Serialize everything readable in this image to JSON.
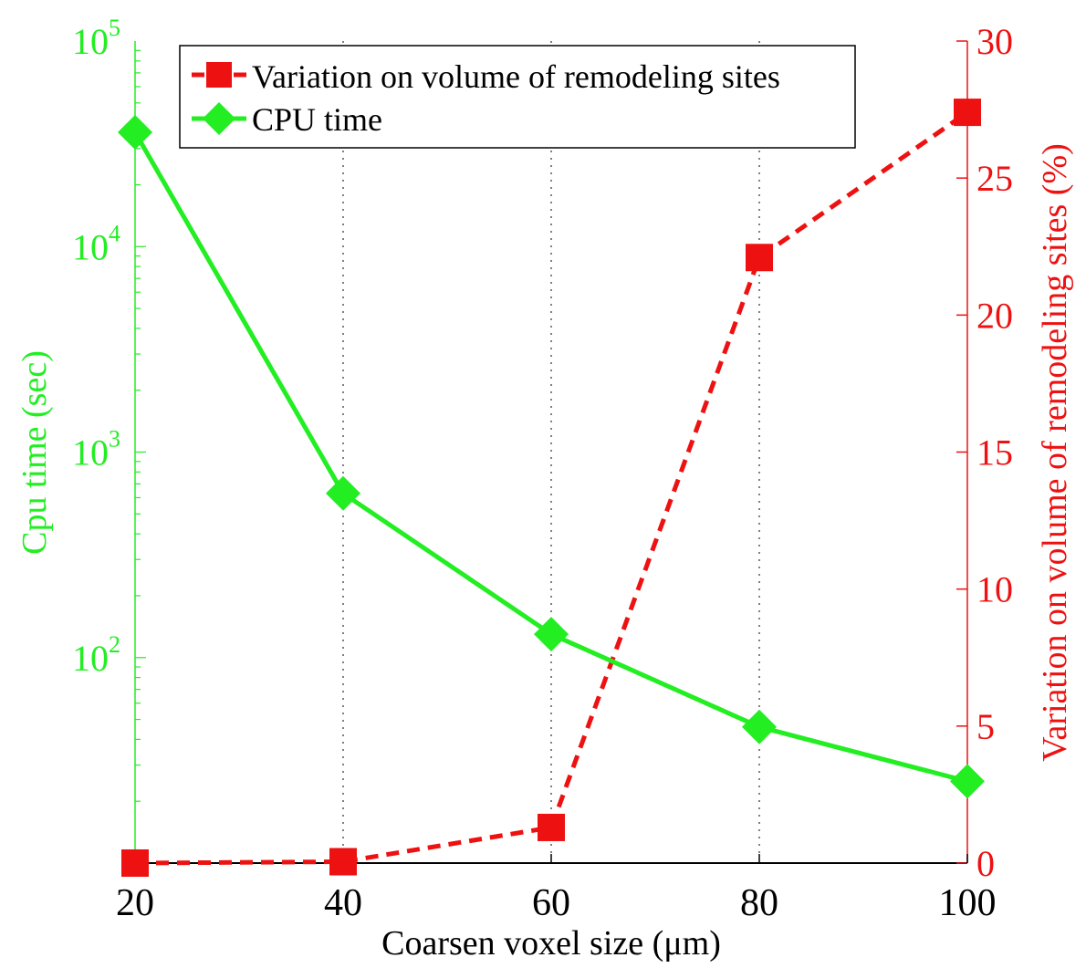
{
  "chart_data": {
    "type": "line",
    "x": [
      20,
      40,
      60,
      80,
      100
    ],
    "xlabel": "Coarsen voxel size (μm)",
    "xlim": [
      20,
      100
    ],
    "x_ticks": [
      "20",
      "40",
      "60",
      "80",
      "100"
    ],
    "grid": "vertical dotted",
    "legend_position": "top-left",
    "left_axis": {
      "label": "Cpu time (sec)",
      "scale": "log",
      "ylim": [
        10,
        100000
      ],
      "ticks": [
        {
          "value": 100,
          "base": "10",
          "exp": "2"
        },
        {
          "value": 1000,
          "base": "10",
          "exp": "3"
        },
        {
          "value": 10000,
          "base": "10",
          "exp": "4"
        },
        {
          "value": 100000,
          "base": "10",
          "exp": "5"
        }
      ],
      "color": "#22ee22"
    },
    "right_axis": {
      "label": "Variation on volume of remodeling sites (%)",
      "scale": "linear",
      "ylim": [
        0,
        30
      ],
      "ticks": [
        "0",
        "5",
        "10",
        "15",
        "20",
        "25",
        "30"
      ],
      "color": "#ee1111"
    },
    "series": [
      {
        "name": "Variation on volume of remodeling sites",
        "axis": "right",
        "values": [
          0,
          0.05,
          1.3,
          22.1,
          27.4
        ],
        "color": "#ee1111",
        "line_style": "dashed",
        "marker": "square"
      },
      {
        "name": "CPU time",
        "axis": "left",
        "values": [
          36000,
          630,
          130,
          46,
          25
        ],
        "color": "#22ee22",
        "line_style": "solid",
        "marker": "diamond"
      }
    ]
  }
}
